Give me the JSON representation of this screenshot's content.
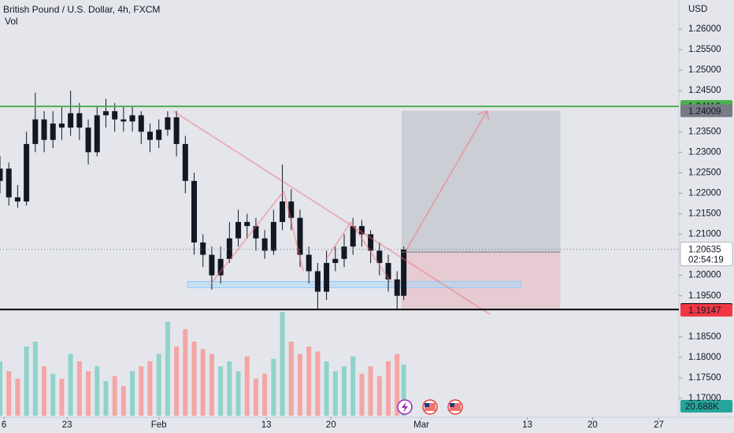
{
  "chart_data": {
    "type": "candlestick",
    "title": "British Pound / U.S. Dollar, 4h, FXCM",
    "volume_title": "Vol",
    "currency": "USD",
    "x": [
      0,
      4,
      8,
      12,
      16,
      20,
      24,
      28,
      32,
      36,
      40,
      44,
      48,
      52,
      56,
      60,
      64,
      68,
      72,
      76,
      80,
      84,
      88,
      92,
      96,
      100,
      104,
      108,
      112,
      116,
      120,
      124,
      128,
      132,
      136,
      140,
      144,
      148,
      152,
      156,
      160,
      164,
      168,
      172,
      176,
      180,
      183
    ],
    "open": [
      1.223,
      1.226,
      1.219,
      1.218,
      1.232,
      1.238,
      1.233,
      1.237,
      1.236,
      1.2395,
      1.236,
      1.23,
      1.239,
      1.24,
      1.238,
      1.2375,
      1.239,
      1.235,
      1.233,
      1.2355,
      1.2385,
      1.232,
      1.223,
      1.208,
      1.205,
      1.2,
      1.204,
      1.209,
      1.213,
      1.212,
      1.209,
      1.206,
      1.213,
      1.218,
      1.214,
      1.205,
      1.201,
      1.196,
      1.203,
      1.204,
      1.207,
      1.212,
      1.21,
      1.206,
      1.203,
      1.199,
      1.195
    ],
    "high": [
      1.229,
      1.2275,
      1.222,
      1.235,
      1.2445,
      1.24,
      1.24,
      1.241,
      1.245,
      1.242,
      1.238,
      1.241,
      1.243,
      1.242,
      1.241,
      1.241,
      1.24,
      1.237,
      1.238,
      1.24,
      1.24,
      1.234,
      1.225,
      1.21,
      1.207,
      1.207,
      1.213,
      1.216,
      1.215,
      1.214,
      1.211,
      1.216,
      1.227,
      1.221,
      1.216,
      1.207,
      1.203,
      1.206,
      1.207,
      1.21,
      1.214,
      1.2135,
      1.211,
      1.208,
      1.205,
      1.201,
      1.207
    ],
    "low": [
      1.22,
      1.217,
      1.2165,
      1.217,
      1.23,
      1.23,
      1.231,
      1.233,
      1.234,
      1.233,
      1.227,
      1.229,
      1.236,
      1.235,
      1.235,
      1.235,
      1.232,
      1.23,
      1.231,
      1.234,
      1.229,
      1.22,
      1.205,
      1.202,
      1.1965,
      1.198,
      1.203,
      1.207,
      1.209,
      1.206,
      1.204,
      1.205,
      1.211,
      1.211,
      1.202,
      1.198,
      1.1915,
      1.194,
      1.201,
      1.202,
      1.205,
      1.207,
      1.203,
      1.2,
      1.196,
      1.1917,
      1.194
    ],
    "close": [
      1.226,
      1.219,
      1.218,
      1.232,
      1.238,
      1.233,
      1.237,
      1.236,
      1.2395,
      1.236,
      1.23,
      1.239,
      1.24,
      1.238,
      1.2375,
      1.239,
      1.235,
      1.233,
      1.2355,
      1.2385,
      1.232,
      1.223,
      1.208,
      1.205,
      1.2,
      1.204,
      1.209,
      1.213,
      1.212,
      1.209,
      1.206,
      1.213,
      1.218,
      1.214,
      1.205,
      1.201,
      1.196,
      1.203,
      1.204,
      1.207,
      1.212,
      1.21,
      1.206,
      1.203,
      1.199,
      1.195,
      1.2063
    ],
    "volume": [
      22,
      18,
      15,
      28,
      30,
      20,
      17,
      15,
      25,
      22,
      18,
      20,
      14,
      16,
      12,
      18,
      20,
      22,
      25,
      38,
      28,
      35,
      30,
      27,
      25,
      20,
      22,
      18,
      24,
      15,
      17,
      23,
      42,
      30,
      25,
      28,
      26,
      22,
      18,
      20,
      24,
      17,
      20,
      16,
      22,
      25,
      20.688
    ],
    "volume_label": "20.688K",
    "volume_lim": [
      0,
      51
    ],
    "candle_color": "#131722",
    "volume_up_color": "#8fd3c9",
    "volume_down_color": "#f4a5a5",
    "xlim": [
      0,
      307
    ],
    "ylim": [
      1.1654,
      1.2671
    ],
    "xticks": [
      {
        "value": 1.8,
        "label": "6"
      },
      {
        "value": 30.4,
        "label": "23"
      },
      {
        "value": 72,
        "label": "Feb"
      },
      {
        "value": 120.7,
        "label": "13"
      },
      {
        "value": 150,
        "label": "20"
      },
      {
        "value": 191,
        "label": "Mar"
      },
      {
        "value": 239,
        "label": "13"
      },
      {
        "value": 268.6,
        "label": "20"
      },
      {
        "value": 298.6,
        "label": "27"
      }
    ],
    "yticks": [
      {
        "value": 1.17,
        "label": "1.17000"
      },
      {
        "value": 1.175,
        "label": "1.17500"
      },
      {
        "value": 1.18,
        "label": "1.18000"
      },
      {
        "value": 1.185,
        "label": "1.18500"
      },
      {
        "value": 1.195,
        "label": "1.19500"
      },
      {
        "value": 1.2,
        "label": "1.20000"
      },
      {
        "value": 1.21,
        "label": "1.21000"
      },
      {
        "value": 1.215,
        "label": "1.21500"
      },
      {
        "value": 1.22,
        "label": "1.22000"
      },
      {
        "value": 1.225,
        "label": "1.22500"
      },
      {
        "value": 1.23,
        "label": "1.23000"
      },
      {
        "value": 1.235,
        "label": "1.23500"
      },
      {
        "value": 1.245,
        "label": "1.24500"
      },
      {
        "value": 1.25,
        "label": "1.25000"
      },
      {
        "value": 1.255,
        "label": "1.25500"
      },
      {
        "value": 1.26,
        "label": "1.26000"
      }
    ],
    "levels": [
      {
        "value": 1.24116,
        "color": "#4caf50",
        "text_color": "#ffffff"
      },
      {
        "value": 1.19167,
        "color": "#000000",
        "text_color": "#ffffff"
      }
    ],
    "last_price": {
      "value": 1.20635,
      "countdown": "02:54:19",
      "color": "#ffffff",
      "text_color": "#131722"
    },
    "position": {
      "x": [
        182,
        254
      ],
      "target": 1.24009,
      "entry": 1.20568,
      "stop": 1.19147,
      "tag_color": "#787b86",
      "stop_color": "#f23645",
      "profit_fill": "rgba(120,123,134,0.22)",
      "loss_fill": "rgba(242,54,69,0.15)"
    },
    "zone": {
      "x": [
        85,
        236
      ],
      "y": [
        1.197,
        1.1985
      ],
      "fill": "rgba(173,216,242,0.55)",
      "stroke": "#90caf9"
    },
    "drawings": {
      "color": "rgba(242,110,120,0.45)",
      "lines": [
        [
          [
            78.6,
            1.24
          ],
          [
            222,
            1.1905
          ]
        ],
        [
          [
            95.7,
            1.198
          ],
          [
            128.6,
            1.2205
          ]
        ],
        [
          [
            128.6,
            1.2205
          ],
          [
            137.5,
            1.201
          ]
        ],
        [
          [
            148,
            1.204
          ],
          [
            159,
            1.213
          ]
        ],
        [
          [
            159,
            1.213
          ],
          [
            177,
            1.1985
          ]
        ],
        [
          [
            184,
            1.206
          ],
          [
            220.7,
            1.24
          ]
        ]
      ]
    }
  }
}
